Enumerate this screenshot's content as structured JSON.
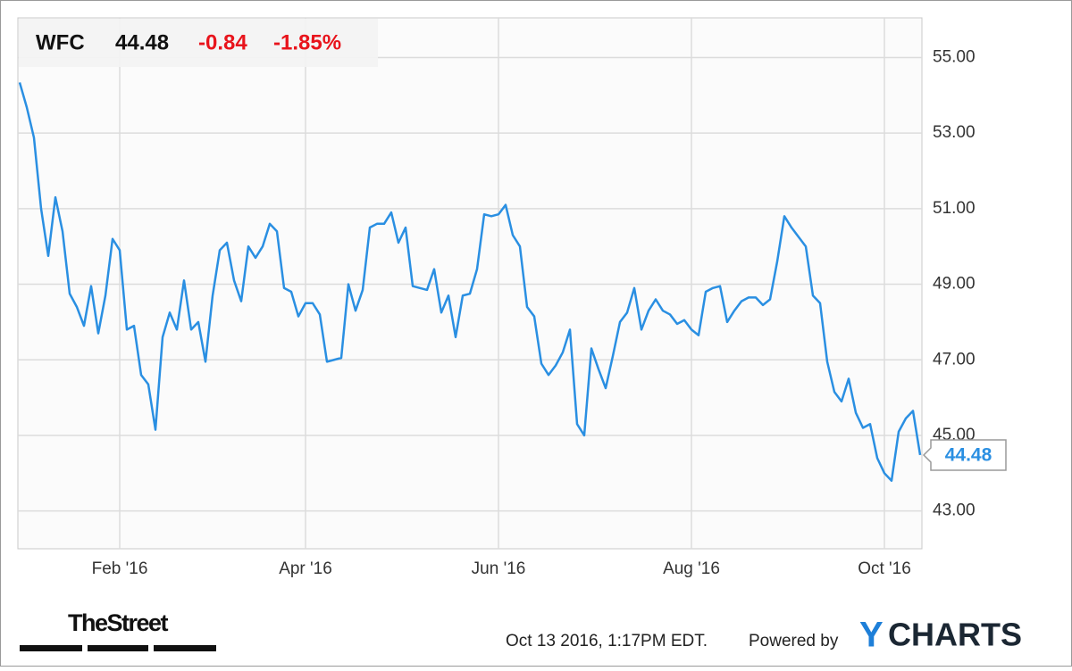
{
  "chart_data": {
    "type": "line",
    "quote": {
      "price": 44.48,
      "change": -0.84,
      "change_percent": {
        "value": -1.85,
        "label": "-1.85%"
      }
    },
    "categories": [
      null,
      null,
      null,
      null,
      null,
      null,
      null,
      null,
      null,
      null,
      null,
      null,
      null,
      null,
      "Feb '16",
      null,
      null,
      null,
      null,
      null,
      null,
      null,
      null,
      null,
      null,
      null,
      null,
      null,
      null,
      null,
      null,
      null,
      null,
      null,
      null,
      null,
      null,
      null,
      null,
      null,
      "Apr '16",
      null,
      null,
      null,
      null,
      null,
      null,
      null,
      null,
      null,
      null,
      null,
      null,
      null,
      null,
      null,
      null,
      null,
      null,
      null,
      null,
      null,
      null,
      null,
      null,
      null,
      null,
      "Jun '16",
      null,
      null,
      null,
      null,
      null,
      null,
      null,
      null,
      null,
      null,
      null,
      null,
      null,
      null,
      null,
      null,
      null,
      null,
      null,
      null,
      null,
      null,
      null,
      null,
      null,
      null,
      "Aug '16",
      null,
      null,
      null,
      null,
      null,
      null,
      null,
      null,
      null,
      null,
      null,
      null,
      null,
      null,
      null,
      null,
      null,
      null,
      null,
      null,
      null,
      null,
      null,
      null,
      null,
      null,
      "Oct '16",
      null,
      null,
      null,
      null,
      null
    ],
    "series": [
      {
        "name": "WFC",
        "color": "#2a8fe2",
        "values": [
          54.34,
          53.68,
          52.88,
          51.0,
          49.75,
          51.3,
          50.4,
          48.75,
          48.4,
          47.9,
          48.95,
          47.7,
          48.7,
          50.2,
          49.9,
          47.8,
          47.9,
          46.6,
          46.35,
          45.15,
          47.6,
          48.25,
          47.8,
          49.1,
          47.8,
          48.0,
          46.95,
          48.7,
          49.9,
          50.1,
          49.1,
          48.55,
          50.0,
          49.7,
          50.0,
          50.6,
          50.4,
          48.9,
          48.8,
          48.15,
          48.5,
          48.5,
          48.2,
          46.95,
          47.0,
          47.05,
          49.0,
          48.3,
          48.85,
          50.5,
          50.6,
          50.6,
          50.9,
          50.1,
          50.5,
          48.95,
          48.9,
          48.85,
          49.4,
          48.25,
          48.7,
          47.6,
          48.7,
          48.75,
          49.4,
          50.85,
          50.8,
          50.85,
          51.1,
          50.3,
          50.0,
          48.4,
          48.15,
          46.9,
          46.6,
          46.85,
          47.2,
          47.8,
          45.3,
          45.0,
          47.3,
          46.75,
          46.25,
          47.1,
          48.0,
          48.25,
          48.9,
          47.8,
          48.3,
          48.6,
          48.3,
          48.2,
          47.95,
          48.05,
          47.8,
          47.65,
          48.8,
          48.9,
          48.95,
          48.0,
          48.3,
          48.55,
          48.65,
          48.65,
          48.45,
          48.6,
          49.6,
          50.8,
          50.5,
          50.25,
          50.0,
          48.7,
          48.5,
          46.95,
          46.15,
          45.9,
          46.5,
          45.6,
          45.2,
          45.3,
          44.4,
          44.0,
          43.8,
          45.1,
          45.45,
          45.65,
          44.48
        ]
      }
    ],
    "ylim": [
      42.0,
      56.05
    ],
    "yticks": [
      {
        "value": 43,
        "label": "43.00"
      },
      {
        "value": 45,
        "label": "45.00"
      },
      {
        "value": 47,
        "label": "47.00"
      },
      {
        "value": 49,
        "label": "49.00"
      },
      {
        "value": 51,
        "label": "51.00"
      },
      {
        "value": 53,
        "label": "53.00"
      },
      {
        "value": 55,
        "label": "55.00"
      }
    ],
    "grid": true,
    "timestamp": "Oct 13 2016, 1:17PM EDT.",
    "powered_by": "Powered by",
    "brand_initial": "Y",
    "brand_rest": "CHARTS",
    "publisher": "TheStreet"
  }
}
